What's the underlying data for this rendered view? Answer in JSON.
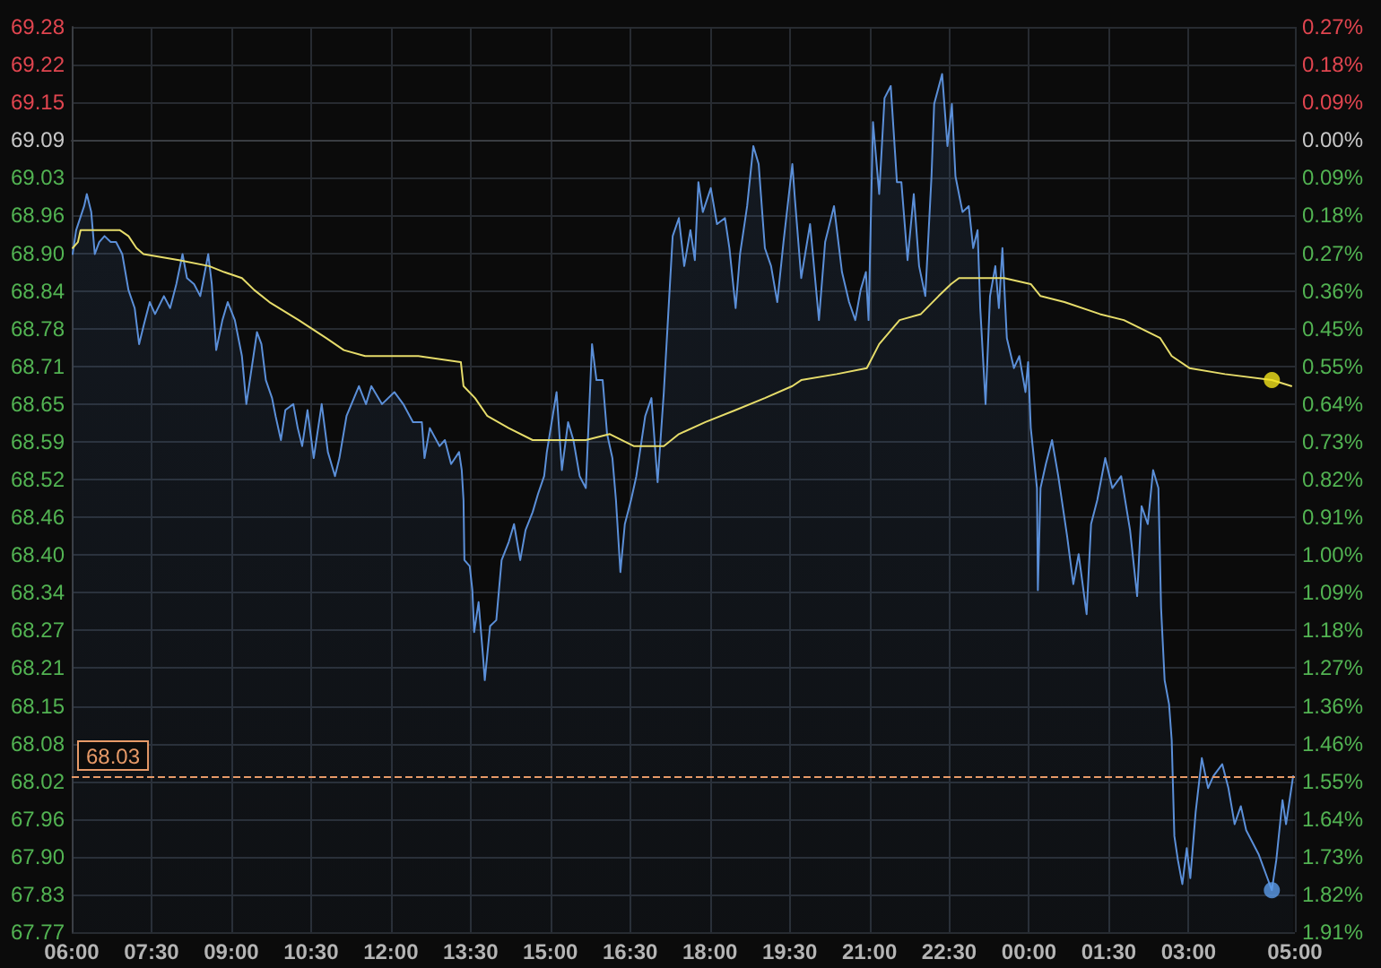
{
  "chart_data": {
    "type": "line",
    "grid": true,
    "xlim": [
      "--01-01T06:00",
      "--01-02T05:00"
    ],
    "xticks": [
      {
        "value": "--01-01T06:00",
        "label": "06:00"
      },
      {
        "value": "--01-01T07:30",
        "label": "07:30"
      },
      {
        "value": "--01-01T09:00",
        "label": "09:00"
      },
      {
        "value": "--01-01T10:30",
        "label": "10:30"
      },
      {
        "value": "--01-01T12:00",
        "label": "12:00"
      },
      {
        "value": "--01-01T13:30",
        "label": "13:30"
      },
      {
        "value": "--01-01T15:00",
        "label": "15:00"
      },
      {
        "value": "--01-01T16:30",
        "label": "16:30"
      },
      {
        "value": "--01-01T18:00",
        "label": "18:00"
      },
      {
        "value": "--01-01T19:30",
        "label": "19:30"
      },
      {
        "value": "--01-01T21:00",
        "label": "21:00"
      },
      {
        "value": "--01-01T22:30",
        "label": "22:30"
      },
      {
        "value": "--01-02T00:00",
        "label": "00:00"
      },
      {
        "value": "--01-02T01:30",
        "label": "01:30"
      },
      {
        "value": "--01-02T03:00",
        "label": "03:00"
      },
      {
        "value": "--01-02T05:00",
        "label": "05:00"
      }
    ],
    "ylim": [
      67.77,
      69.2786
    ],
    "yticks": [
      {
        "value": 69.2786,
        "label": "69.28"
      },
      {
        "value": 69.2157,
        "label": "69.22"
      },
      {
        "value": 69.1529,
        "label": "69.15"
      },
      69.09,
      {
        "value": 69.0271,
        "label": "69.03"
      },
      {
        "value": 68.9643,
        "label": "68.96"
      },
      {
        "value": 68.9014,
        "label": "68.90"
      },
      {
        "value": 68.8386,
        "label": "68.84"
      },
      {
        "value": 68.7757,
        "label": "68.78"
      },
      {
        "value": 68.7129,
        "label": "68.71"
      },
      68.65,
      {
        "value": 68.5871,
        "label": "68.59"
      },
      {
        "value": 68.5243,
        "label": "68.52"
      },
      {
        "value": 68.4614,
        "label": "68.46"
      },
      {
        "value": 68.3986,
        "label": "68.40"
      },
      {
        "value": 68.3357,
        "label": "68.34"
      },
      {
        "value": 68.2729,
        "label": "68.27"
      },
      68.21,
      {
        "value": 68.1471,
        "label": "68.15"
      },
      {
        "value": 68.0843,
        "label": "68.08"
      },
      {
        "value": 68.0214,
        "label": "68.02"
      },
      {
        "value": 67.9586,
        "label": "67.96"
      },
      {
        "value": 67.8957,
        "label": "67.90"
      },
      {
        "value": 67.8329,
        "label": "67.83"
      },
      67.77
    ],
    "y2lim": [
      -1.91,
      0.2729
    ],
    "y2ticks": [
      {
        "value": 0.2729,
        "label": "0.27%"
      },
      {
        "value": 0.1819,
        "label": "0.18%"
      },
      {
        "value": 0.091,
        "label": "0.09%"
      },
      {
        "value": 0,
        "label": "0.00%"
      },
      {
        "value": -0.091,
        "label": "0.09%"
      },
      {
        "value": -0.1819,
        "label": "0.18%"
      },
      {
        "value": -0.2729,
        "label": "0.27%"
      },
      {
        "value": -0.3638,
        "label": "0.36%"
      },
      {
        "value": -0.4548,
        "label": "0.45%"
      },
      {
        "value": -0.5457,
        "label": "0.55%"
      },
      {
        "value": -0.6367,
        "label": "0.64%"
      },
      {
        "value": -0.7276,
        "label": "0.73%"
      },
      {
        "value": -0.8186,
        "label": "0.82%"
      },
      {
        "value": -0.9095,
        "label": "0.91%"
      },
      {
        "value": -1.0005,
        "label": "1.00%"
      },
      {
        "value": -1.0914,
        "label": "1.09%"
      },
      {
        "value": -1.1824,
        "label": "1.18%"
      },
      {
        "value": -1.2733,
        "label": "1.27%"
      },
      {
        "value": -1.3643,
        "label": "1.36%"
      },
      {
        "value": -1.4552,
        "label": "1.46%"
      },
      {
        "value": -1.5462,
        "label": "1.55%"
      },
      {
        "value": -1.6371,
        "label": "1.64%"
      },
      {
        "value": -1.7281,
        "label": "1.73%"
      },
      {
        "value": -1.819,
        "label": "1.82%"
      },
      {
        "value": -1.91,
        "label": "1.91%"
      }
    ],
    "ref_lines": [
      {
        "axis": "y",
        "value": 68.03,
        "label": "68.03",
        "color": "#e79a68",
        "line_style": "dashed"
      }
    ],
    "series": [
      {
        "type": "area",
        "color": "#5b8fd8",
        "x": [
          "--01-01T06:01",
          "--01-01T06:05",
          "--01-01T06:14",
          "--01-01T06:17",
          "--01-01T06:22",
          "--01-01T06:26",
          "--01-01T06:31",
          "--01-01T06:37",
          "--01-01T06:44",
          "--01-01T06:50",
          "--01-01T06:57",
          "--01-01T07:04",
          "--01-01T07:11",
          "--01-01T07:16",
          "--01-01T07:21",
          "--01-01T07:28",
          "--01-01T07:34",
          "--01-01T07:44",
          "--01-01T07:51",
          "--01-01T07:58",
          "--01-01T08:05",
          "--01-01T08:10",
          "--01-01T08:18",
          "--01-01T08:25",
          "--01-01T08:34",
          "--01-01T08:38",
          "--01-01T08:43",
          "--01-01T08:50",
          "--01-01T08:56",
          "--01-01T09:04",
          "--01-01T09:12",
          "--01-01T09:17",
          "--01-01T09:22",
          "--01-01T09:29",
          "--01-01T09:34",
          "--01-01T09:39",
          "--01-01T09:46",
          "--01-01T09:50",
          "--01-01T09:56",
          "--01-01T10:01",
          "--01-01T10:10",
          "--01-01T10:15",
          "--01-01T10:20",
          "--01-01T10:26",
          "--01-01T10:33",
          "--01-01T10:42",
          "--01-01T10:49",
          "--01-01T10:57",
          "--01-01T11:02",
          "--01-01T11:10",
          "--01-01T11:24",
          "--01-01T11:32",
          "--01-01T11:38",
          "--01-01T11:50",
          "--01-01T12:04",
          "--01-01T12:14",
          "--01-01T12:25",
          "--01-01T12:35",
          "--01-01T12:38",
          "--01-01T12:44",
          "--01-01T12:55",
          "--01-01T13:01",
          "--01-01T13:08",
          "--01-01T13:17",
          "--01-01T13:20",
          "--01-01T13:22",
          "--01-01T13:23",
          "--01-01T13:29",
          "--01-01T13:32",
          "--01-01T13:34",
          "--01-01T13:39",
          "--01-01T13:44",
          "--01-01T13:46",
          "--01-01T13:52",
          "--01-01T13:59",
          "--01-01T14:05",
          "--01-01T14:13",
          "--01-01T14:19",
          "--01-01T14:26",
          "--01-01T14:32",
          "--01-01T14:40",
          "--01-01T14:46",
          "--01-01T14:53",
          "--01-01T14:56",
          "--01-01T15:07",
          "--01-01T15:13",
          "--01-01T15:20",
          "--01-01T15:26",
          "--01-01T15:33",
          "--01-01T15:40",
          "--01-01T15:47",
          "--01-01T15:52",
          "--01-01T15:59",
          "--01-01T16:04",
          "--01-01T16:10",
          "--01-01T16:14",
          "--01-01T16:19",
          "--01-01T16:24",
          "--01-01T16:31",
          "--01-01T16:37",
          "--01-01T16:47",
          "--01-01T16:54",
          "--01-01T17:01",
          "--01-01T17:08",
          "--01-01T17:13",
          "--01-01T17:18",
          "--01-01T17:25",
          "--01-01T17:31",
          "--01-01T17:38",
          "--01-01T17:43",
          "--01-01T17:47",
          "--01-01T17:52",
          "--01-01T18:01",
          "--01-01T18:08",
          "--01-01T18:17",
          "--01-01T18:22",
          "--01-01T18:29",
          "--01-01T18:34",
          "--01-01T18:42",
          "--01-01T18:49",
          "--01-01T18:55",
          "--01-01T19:02",
          "--01-01T19:09",
          "--01-01T19:16",
          "--01-01T19:23",
          "--01-01T19:33",
          "--01-01T19:36",
          "--01-01T19:43",
          "--01-01T19:53",
          "--01-01T20:03",
          "--01-01T20:10",
          "--01-01T20:20",
          "--01-01T20:29",
          "--01-01T20:37",
          "--01-01T20:44",
          "--01-01T20:50",
          "--01-01T20:56",
          "--01-01T20:59",
          "--01-01T21:04",
          "--01-01T21:11",
          "--01-01T21:17",
          "--01-01T21:24",
          "--01-01T21:31",
          "--01-01T21:36",
          "--01-01T21:43",
          "--01-01T21:50",
          "--01-01T21:56",
          "--01-01T22:03",
          "--01-01T22:10",
          "--01-01T22:13",
          "--01-01T22:22",
          "--01-01T22:28",
          "--01-01T22:33",
          "--01-01T22:37",
          "--01-01T22:45",
          "--01-01T22:52",
          "--01-01T22:57",
          "--01-01T23:02",
          "--01-01T23:05",
          "--01-01T23:11",
          "--01-01T23:16",
          "--01-01T23:22",
          "--01-01T23:26",
          "--01-01T23:30",
          "--01-01T23:35",
          "--01-01T23:43",
          "--01-01T23:49",
          "--01-01T23:56",
          "--01-01T23:59",
          "--01-02T00:02",
          "--01-02T00:09",
          "--01-02T00:10",
          "--01-02T00:13",
          "--01-02T00:19",
          "--01-02T00:26",
          "--01-02T00:33",
          "--01-02T00:43",
          "--01-02T00:50",
          "--01-02T00:56",
          "--01-02T01:05",
          "--01-02T01:10",
          "--01-02T01:17",
          "--01-02T01:26",
          "--01-02T01:34",
          "--01-02T01:44",
          "--01-02T01:54",
          "--01-02T02:02",
          "--01-02T02:07",
          "--01-02T02:14",
          "--01-02T02:20",
          "--01-02T02:26",
          "--01-02T02:29",
          "--01-02T02:33",
          "--01-02T02:38",
          "--01-02T02:41",
          "--01-02T02:44",
          "--01-02T02:48",
          "--01-02T02:53",
          "--01-02T02:58",
          "--01-02T03:02",
          "--01-02T03:08",
          "--01-02T03:15",
          "--01-02T03:22",
          "--01-02T03:28",
          "--01-02T03:38",
          "--01-02T03:45",
          "--01-02T03:52",
          "--01-02T03:59",
          "--01-02T04:05",
          "--01-02T04:19",
          "--01-02T04:29",
          "--01-02T04:34",
          "--01-02T04:39",
          "--01-02T04:46",
          "--01-02T04:50",
          "--01-02T04:58"
        ],
        "values": [
          68.9,
          68.94,
          68.98,
          69.0,
          68.97,
          68.9,
          68.92,
          68.93,
          68.92,
          68.92,
          68.9,
          68.84,
          68.81,
          68.75,
          68.78,
          68.82,
          68.8,
          68.83,
          68.81,
          68.85,
          68.9,
          68.86,
          68.85,
          68.83,
          68.9,
          68.85,
          68.74,
          68.79,
          68.82,
          68.79,
          68.73,
          68.65,
          68.7,
          68.77,
          68.75,
          68.69,
          68.66,
          68.63,
          68.59,
          68.64,
          68.65,
          68.61,
          68.58,
          68.64,
          68.56,
          68.65,
          68.57,
          68.53,
          68.56,
          68.63,
          68.68,
          68.65,
          68.68,
          68.65,
          68.67,
          68.65,
          68.62,
          68.62,
          68.56,
          68.61,
          68.58,
          68.59,
          68.55,
          68.57,
          68.54,
          68.49,
          68.39,
          68.38,
          68.34,
          68.27,
          68.32,
          68.23,
          68.19,
          68.28,
          68.29,
          68.39,
          68.42,
          68.45,
          68.39,
          68.44,
          68.47,
          68.5,
          68.53,
          68.57,
          68.67,
          68.54,
          68.62,
          68.59,
          68.53,
          68.51,
          68.75,
          68.69,
          68.69,
          68.6,
          68.56,
          68.49,
          68.37,
          68.45,
          68.49,
          68.53,
          68.63,
          68.66,
          68.52,
          68.67,
          68.8,
          68.93,
          68.96,
          68.88,
          68.94,
          68.89,
          69.02,
          68.97,
          69.01,
          68.95,
          68.96,
          68.91,
          68.81,
          68.9,
          68.98,
          69.08,
          69.05,
          68.91,
          68.88,
          68.82,
          68.92,
          69.05,
          68.99,
          68.86,
          68.95,
          68.79,
          68.92,
          68.98,
          68.87,
          68.82,
          68.79,
          68.84,
          68.87,
          68.79,
          69.12,
          69.0,
          69.16,
          69.18,
          69.02,
          69.02,
          68.89,
          69.0,
          68.88,
          68.83,
          69.03,
          69.15,
          69.2,
          69.08,
          69.15,
          69.03,
          68.97,
          68.98,
          68.91,
          68.94,
          68.81,
          68.65,
          68.83,
          68.88,
          68.81,
          68.91,
          68.76,
          68.71,
          68.73,
          68.67,
          68.72,
          68.61,
          68.51,
          68.34,
          68.51,
          68.55,
          68.59,
          68.53,
          68.43,
          68.35,
          68.4,
          68.3,
          68.45,
          68.49,
          68.56,
          68.51,
          68.53,
          68.44,
          68.33,
          68.48,
          68.45,
          68.54,
          68.51,
          68.31,
          68.19,
          68.15,
          68.09,
          67.93,
          67.89,
          67.85,
          67.91,
          67.86,
          67.97,
          68.06,
          68.01,
          68.03,
          68.05,
          68.01,
          67.95,
          67.98,
          67.94,
          67.9,
          67.86,
          67.84,
          67.89,
          67.99,
          67.95,
          68.03
        ]
      },
      {
        "color": "#e6dc6a",
        "x": [
          "--01-01T06:01",
          "--01-01T06:07",
          "--01-01T06:10",
          "--01-01T06:27",
          "--01-01T06:54",
          "--01-01T07:04",
          "--01-01T07:13",
          "--01-01T07:21",
          "--01-01T08:01",
          "--01-01T08:35",
          "--01-01T08:52",
          "--01-01T09:12",
          "--01-01T09:26",
          "--01-01T09:43",
          "--01-01T10:16",
          "--01-01T10:47",
          "--01-01T11:07",
          "--01-01T11:31",
          "--01-01T12:31",
          "--01-01T13:19",
          "--01-01T13:22",
          "--01-01T13:35",
          "--01-01T13:49",
          "--01-01T14:13",
          "--01-01T14:40",
          "--01-01T15:40",
          "--01-01T16:07",
          "--01-01T16:34",
          "--01-01T17:08",
          "--01-01T17:25",
          "--01-01T17:55",
          "--01-01T18:29",
          "--01-01T19:02",
          "--01-01T19:33",
          "--01-01T19:43",
          "--01-01T20:23",
          "--01-01T20:57",
          "--01-01T21:11",
          "--01-01T21:34",
          "--01-01T21:58",
          "--01-01T22:18",
          "--01-01T22:32",
          "--01-01T22:41",
          "--01-01T22:58",
          "--01-01T23:32",
          "--01-02T00:02",
          "--01-02T00:13",
          "--01-02T00:40",
          "--01-02T01:20",
          "--01-02T01:47",
          "--01-02T02:28",
          "--01-02T02:41",
          "--01-02T03:01",
          "--01-02T03:41",
          "--01-02T04:34",
          "--01-02T04:56"
        ],
        "values": [
          68.91,
          68.92,
          68.94,
          68.94,
          68.94,
          68.93,
          68.91,
          68.9,
          68.89,
          68.88,
          68.87,
          68.86,
          68.84,
          68.82,
          68.79,
          68.76,
          68.74,
          68.73,
          68.73,
          68.72,
          68.68,
          68.66,
          68.63,
          68.61,
          68.59,
          68.59,
          68.6,
          68.58,
          68.58,
          68.6,
          68.62,
          68.64,
          68.66,
          68.68,
          68.69,
          68.7,
          68.71,
          68.75,
          68.79,
          68.8,
          68.83,
          68.85,
          68.86,
          68.86,
          68.86,
          68.85,
          68.83,
          68.82,
          68.8,
          68.79,
          68.76,
          68.73,
          68.71,
          68.7,
          68.69,
          68.68
        ]
      },
      {
        "type": "scatter",
        "x": [
          "--01-02T04:34",
          "--01-02T04:34"
        ],
        "values": [
          67.84,
          68.69
        ],
        "colors": [
          "#5b9be8",
          "#f2e41c"
        ]
      }
    ]
  }
}
